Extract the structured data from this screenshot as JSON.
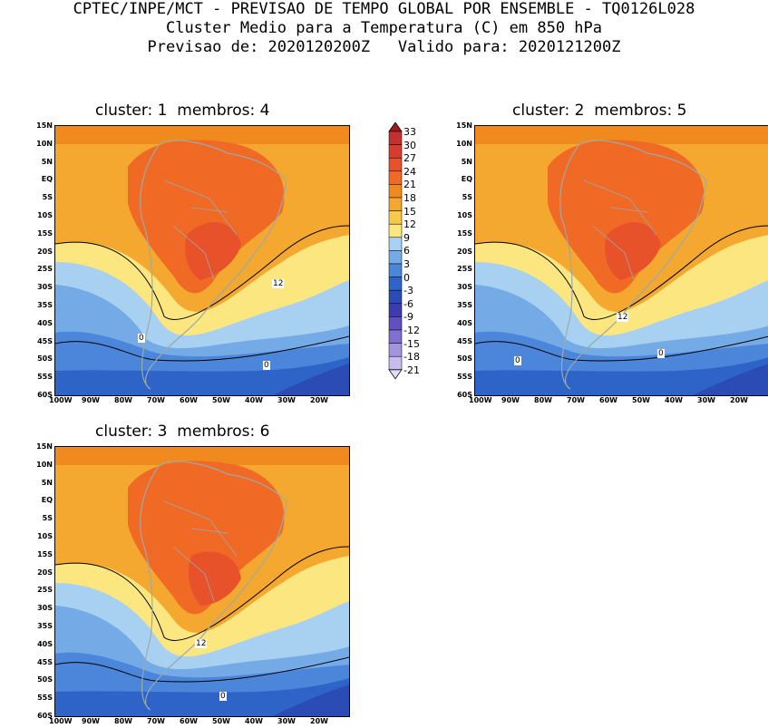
{
  "header": {
    "line1": "CPTEC/INPE/MCT - PREVISAO DE TEMPO GLOBAL POR ENSEMBLE - TQ0126L028",
    "line2": "Cluster Medio para a Temperatura (C) em 850 hPa",
    "line3": "Previsao de: 2020120200Z   Valido para: 2020121200Z"
  },
  "axes": {
    "lat_labels": [
      "15N",
      "10N",
      "5N",
      "EQ",
      "5S",
      "10S",
      "15S",
      "20S",
      "25S",
      "30S",
      "35S",
      "40S",
      "45S",
      "50S",
      "55S",
      "60S"
    ],
    "lon_labels": [
      "100W",
      "90W",
      "80W",
      "70W",
      "60W",
      "50W",
      "40W",
      "30W",
      "20W"
    ]
  },
  "colorbar": {
    "labels": [
      "33",
      "30",
      "27",
      "24",
      "21",
      "18",
      "15",
      "12",
      "9",
      "6",
      "3",
      "0",
      "-3",
      "-6",
      "-9",
      "-12",
      "-15",
      "-18",
      "-21"
    ],
    "colors": [
      "#a01c1c",
      "#c43030",
      "#d83c30",
      "#e8522a",
      "#f06a26",
      "#f08a1e",
      "#f4a830",
      "#f8c84a",
      "#fce680",
      "#a8d0f0",
      "#74aae6",
      "#4c86da",
      "#2e64c8",
      "#2a4cb4",
      "#3e3ab0",
      "#6050c0",
      "#8070d0",
      "#a494e0",
      "#c8bcec",
      "#e4dcf6"
    ]
  },
  "panels": [
    {
      "title": "cluster: 1  membros: 4",
      "contour_labels": [
        "12",
        "0",
        "0"
      ]
    },
    {
      "title": "cluster: 2  membros: 5",
      "contour_labels": [
        "12",
        "0",
        "0"
      ]
    },
    {
      "title": "cluster: 3  membros: 6",
      "contour_labels": [
        "12",
        "0"
      ]
    }
  ]
}
